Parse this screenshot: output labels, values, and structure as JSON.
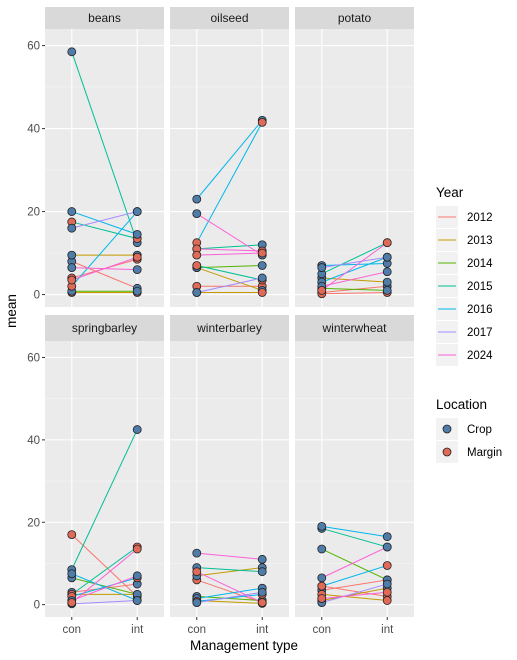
{
  "chart_data": {
    "type": "line",
    "xlabel": "Management type",
    "ylabel": "mean",
    "x_categories": [
      "con",
      "int"
    ],
    "ylim": [
      -3,
      64
    ],
    "yticks": [
      0,
      20,
      40,
      60
    ],
    "grid": true,
    "legend_position": "right",
    "legends": {
      "year": {
        "title": "Year",
        "entries": [
          {
            "label": "2012",
            "color": "#F8766D"
          },
          {
            "label": "2013",
            "color": "#C49A00"
          },
          {
            "label": "2014",
            "color": "#53B400"
          },
          {
            "label": "2015",
            "color": "#00C094"
          },
          {
            "label": "2016",
            "color": "#00B6EB"
          },
          {
            "label": "2017",
            "color": "#A58AFF"
          },
          {
            "label": "2024",
            "color": "#FB61D7"
          }
        ]
      },
      "location": {
        "title": "Location",
        "entries": [
          {
            "label": "Crop",
            "color": "#4F7CA8"
          },
          {
            "label": "Margin",
            "color": "#E06A58"
          }
        ]
      }
    },
    "panels": [
      {
        "name": "beans",
        "lines": [
          {
            "year": "2012",
            "location": "Crop",
            "con": 8.0,
            "int": 1.5
          },
          {
            "year": "2012",
            "location": "Margin",
            "con": 4.0,
            "int": 8.5
          },
          {
            "year": "2013",
            "location": "Crop",
            "con": 9.5,
            "int": 9.5
          },
          {
            "year": "2013",
            "location": "Margin",
            "con": 0.5,
            "int": 0.5
          },
          {
            "year": "2014",
            "location": "Crop",
            "con": 0.8,
            "int": 0.8
          },
          {
            "year": "2015",
            "location": "Crop",
            "con": 58.5,
            "int": 12.5
          },
          {
            "year": "2015",
            "location": "Margin",
            "con": 17.5,
            "int": 13.5
          },
          {
            "year": "2016",
            "location": "Crop",
            "con": 20.0,
            "int": 14.5
          },
          {
            "year": "2016",
            "location": "Margin",
            "con": 2.0,
            "int": 20.0
          },
          {
            "year": "2017",
            "location": "Crop",
            "con": 16.0,
            "int": 20.0
          },
          {
            "year": "2024",
            "location": "Crop",
            "con": 6.5,
            "int": 6.0
          },
          {
            "year": "2024",
            "location": "Margin",
            "con": 3.5,
            "int": 9.0
          }
        ]
      },
      {
        "name": "oilseed",
        "lines": [
          {
            "year": "2012",
            "location": "Margin",
            "con": 2.0,
            "int": 2.0
          },
          {
            "year": "2013",
            "location": "Crop",
            "con": 6.5,
            "int": 1.0
          },
          {
            "year": "2013",
            "location": "Margin",
            "con": 0.5,
            "int": 0.5
          },
          {
            "year": "2014",
            "location": "Crop",
            "con": 6.5,
            "int": 7.0
          },
          {
            "year": "2015",
            "location": "Crop",
            "con": 11.0,
            "int": 12.0
          },
          {
            "year": "2015",
            "location": "Margin",
            "con": 7.0,
            "int": 3.5
          },
          {
            "year": "2016",
            "location": "Crop",
            "con": 23.0,
            "int": 42.0
          },
          {
            "year": "2016",
            "location": "Margin",
            "con": 12.5,
            "int": 41.5
          },
          {
            "year": "2017",
            "location": "Crop",
            "con": 0.5,
            "int": 4.0
          },
          {
            "year": "2024",
            "location": "Crop",
            "con": 19.5,
            "int": 9.5
          },
          {
            "year": "2024",
            "location": "Margin",
            "con": 11.0,
            "int": 10.5
          },
          {
            "year": "2024",
            "location": "Margin",
            "con": 9.5,
            "int": 10.0
          }
        ]
      },
      {
        "name": "potato",
        "lines": [
          {
            "year": "2012",
            "location": "Crop",
            "con": 0.5,
            "int": 2.0
          },
          {
            "year": "2012",
            "location": "Margin",
            "con": 0.2,
            "int": 0.5
          },
          {
            "year": "2013",
            "location": "Crop",
            "con": 4.0,
            "int": 3.0
          },
          {
            "year": "2014",
            "location": "Crop",
            "con": 1.5,
            "int": 1.0
          },
          {
            "year": "2015",
            "location": "Crop",
            "con": 5.0,
            "int": 12.5
          },
          {
            "year": "2016",
            "location": "Crop",
            "con": 7.0,
            "int": 7.5
          },
          {
            "year": "2016",
            "location": "Crop",
            "con": 3.0,
            "int": 9.0
          },
          {
            "year": "2017",
            "location": "Crop",
            "con": 6.5,
            "int": 9.0
          },
          {
            "year": "2024",
            "location": "Crop",
            "con": 2.0,
            "int": 5.5
          },
          {
            "year": "2024",
            "location": "Margin",
            "con": 1.0,
            "int": 12.5
          }
        ]
      },
      {
        "name": "springbarley",
        "lines": [
          {
            "year": "2012",
            "location": "Crop",
            "con": 3.0,
            "int": 5.0
          },
          {
            "year": "2012",
            "location": "Margin",
            "con": 17.0,
            "int": 2.0
          },
          {
            "year": "2013",
            "location": "Crop",
            "con": 2.5,
            "int": 2.5
          },
          {
            "year": "2014",
            "location": "Crop",
            "con": 6.5,
            "int": 2.5
          },
          {
            "year": "2015",
            "location": "Crop",
            "con": 8.5,
            "int": 42.5
          },
          {
            "year": "2015",
            "location": "Margin",
            "con": 2.5,
            "int": 14.0
          },
          {
            "year": "2016",
            "location": "Crop",
            "con": 7.5,
            "int": 1.0
          },
          {
            "year": "2016",
            "location": "Margin",
            "con": 2.0,
            "int": 6.5
          },
          {
            "year": "2017",
            "location": "Crop",
            "con": 0.2,
            "int": 1.0
          },
          {
            "year": "2024",
            "location": "Crop",
            "con": 1.0,
            "int": 7.0
          },
          {
            "year": "2024",
            "location": "Margin",
            "con": 0.5,
            "int": 13.5
          }
        ]
      },
      {
        "name": "winterbarley",
        "lines": [
          {
            "year": "2012",
            "location": "Margin",
            "con": 6.0,
            "int": 0.5
          },
          {
            "year": "2013",
            "location": "Crop",
            "con": 7.0,
            "int": 9.0
          },
          {
            "year": "2013",
            "location": "Margin",
            "con": 1.0,
            "int": 0.3
          },
          {
            "year": "2014",
            "location": "Crop",
            "con": 2.0,
            "int": 1.0
          },
          {
            "year": "2015",
            "location": "Crop",
            "con": 9.0,
            "int": 8.0
          },
          {
            "year": "2016",
            "location": "Crop",
            "con": 1.5,
            "int": 4.0
          },
          {
            "year": "2016",
            "location": "Margin",
            "con": 0.8,
            "int": 2.5
          },
          {
            "year": "2017",
            "location": "Crop",
            "con": 0.5,
            "int": 3.0
          },
          {
            "year": "2024",
            "location": "Crop",
            "con": 12.5,
            "int": 11.0
          },
          {
            "year": "2024",
            "location": "Margin",
            "con": 8.0,
            "int": 0.5
          }
        ]
      },
      {
        "name": "winterwheat",
        "lines": [
          {
            "year": "2012",
            "location": "Crop",
            "con": 3.5,
            "int": 6.0
          },
          {
            "year": "2012",
            "location": "Margin",
            "con": 4.5,
            "int": 2.0
          },
          {
            "year": "2013",
            "location": "Crop",
            "con": 1.0,
            "int": 4.0
          },
          {
            "year": "2013",
            "location": "Margin",
            "con": 2.5,
            "int": 1.0
          },
          {
            "year": "2014",
            "location": "Crop",
            "con": 13.5,
            "int": 6.0
          },
          {
            "year": "2015",
            "location": "Crop",
            "con": 18.5,
            "int": 14.0
          },
          {
            "year": "2016",
            "location": "Crop",
            "con": 19.0,
            "int": 16.5
          },
          {
            "year": "2016",
            "location": "Margin",
            "con": 4.5,
            "int": 9.5
          },
          {
            "year": "2017",
            "location": "Crop",
            "con": 0.5,
            "int": 5.0
          },
          {
            "year": "2024",
            "location": "Crop",
            "con": 6.5,
            "int": 14.0
          },
          {
            "year": "2024",
            "location": "Margin",
            "con": 1.5,
            "int": 3.0
          }
        ]
      }
    ]
  }
}
